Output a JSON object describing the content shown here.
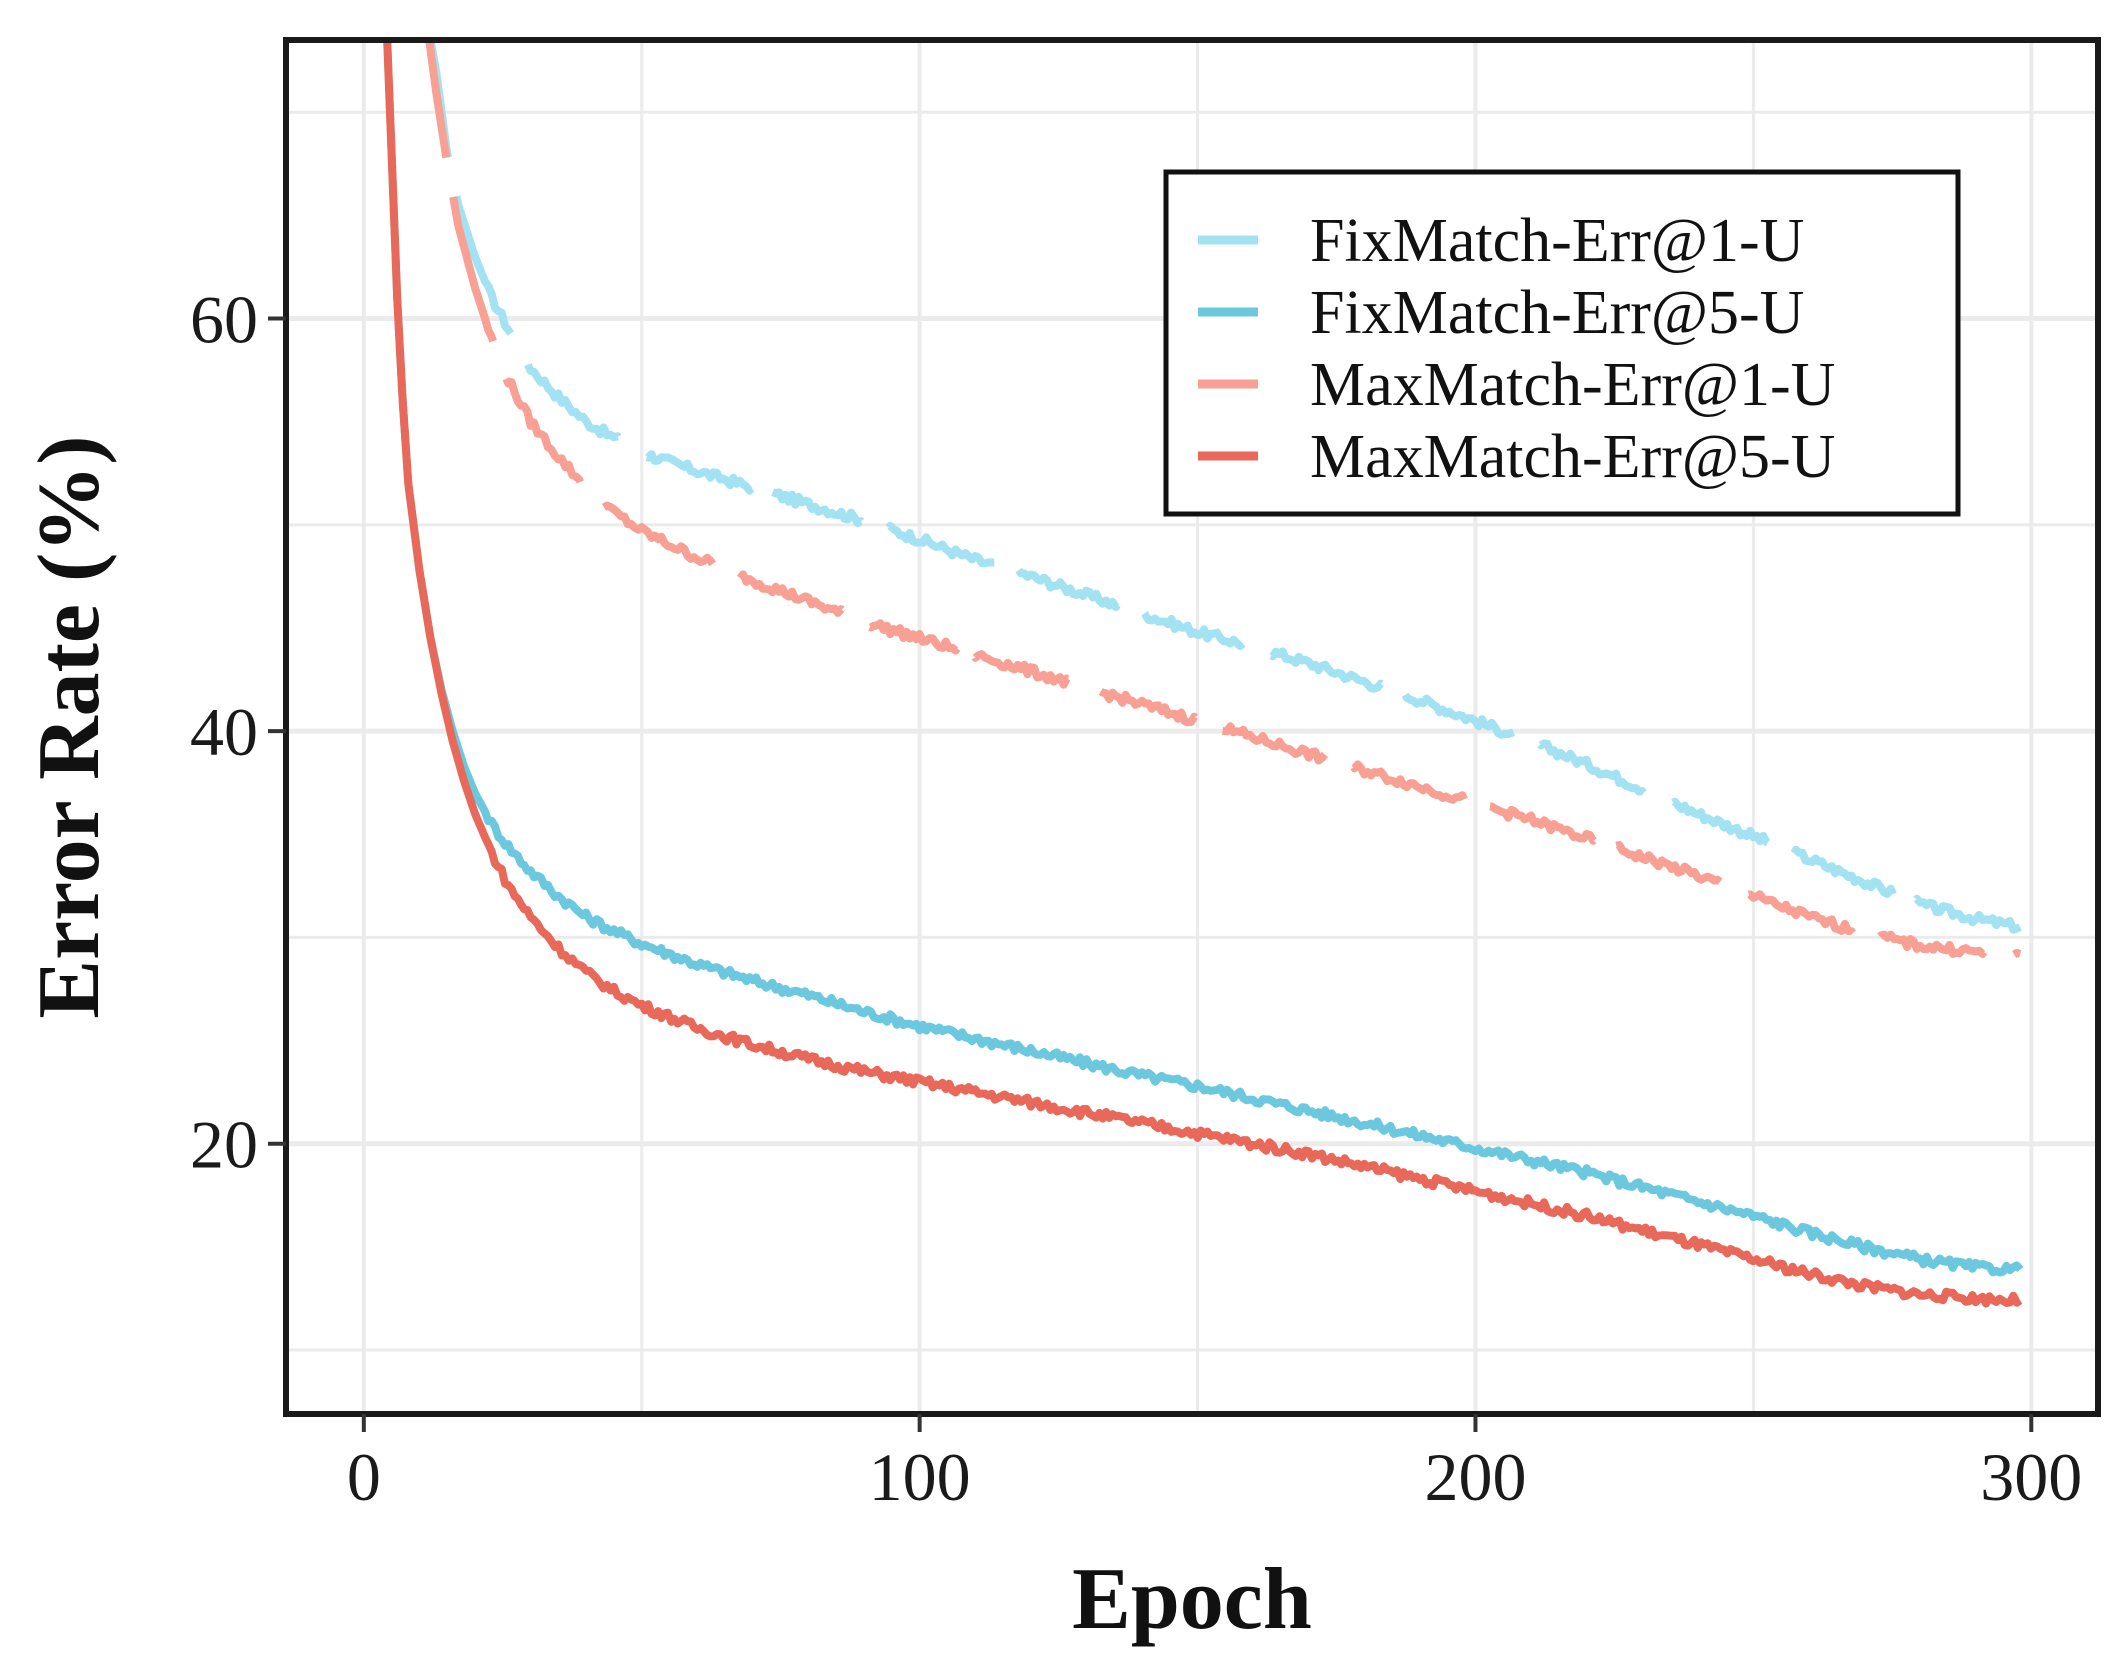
{
  "chart_data": {
    "type": "line",
    "title": "",
    "xlabel": "Epoch",
    "ylabel": "Error Rate (%)",
    "xlim": [
      -14,
      312
    ],
    "ylim": [
      6.9,
      73.5
    ],
    "x_ticks": [
      0,
      100,
      200,
      300
    ],
    "x_tick_labels": [
      "0",
      "100",
      "200",
      "300"
    ],
    "y_ticks": [
      20,
      40,
      60
    ],
    "y_tick_labels": [
      "20",
      "40",
      "60"
    ],
    "grid": true,
    "legend_position": "top-right",
    "series": [
      {
        "name": "FixMatch-Err@1-U",
        "color": "#a3e2f3",
        "dashed": true,
        "points": [
          [
            11,
            75
          ],
          [
            13,
            72
          ],
          [
            15,
            68
          ],
          [
            17,
            65.5
          ],
          [
            20,
            63
          ],
          [
            23,
            61
          ],
          [
            26,
            59.5
          ],
          [
            30,
            57.6
          ],
          [
            35,
            56.2
          ],
          [
            40,
            55
          ],
          [
            45,
            54.2
          ],
          [
            50,
            53.5
          ],
          [
            60,
            52.6
          ],
          [
            70,
            51.8
          ],
          [
            80,
            51
          ],
          [
            90,
            50.2
          ],
          [
            100,
            49.3
          ],
          [
            110,
            48.3
          ],
          [
            120,
            47.5
          ],
          [
            130,
            46.6
          ],
          [
            140,
            45.7
          ],
          [
            150,
            44.8
          ],
          [
            160,
            44.1
          ],
          [
            170,
            43.3
          ],
          [
            180,
            42.4
          ],
          [
            190,
            41.5
          ],
          [
            200,
            40.5
          ],
          [
            210,
            39.5
          ],
          [
            220,
            38.4
          ],
          [
            230,
            37.2
          ],
          [
            240,
            36
          ],
          [
            250,
            34.9
          ],
          [
            260,
            33.8
          ],
          [
            270,
            32.7
          ],
          [
            280,
            31.6
          ],
          [
            290,
            30.9
          ],
          [
            298,
            30.5
          ]
        ]
      },
      {
        "name": "FixMatch-Err@5-U",
        "color": "#6bc8de",
        "dashed": false,
        "points": [
          [
            4,
            75
          ],
          [
            5,
            68
          ],
          [
            6,
            61
          ],
          [
            7,
            56
          ],
          [
            8,
            52
          ],
          [
            10,
            47.8
          ],
          [
            12,
            44.5
          ],
          [
            14,
            42
          ],
          [
            16,
            40
          ],
          [
            18,
            38.3
          ],
          [
            20,
            37
          ],
          [
            23,
            35.5
          ],
          [
            26,
            34.4
          ],
          [
            30,
            33.2
          ],
          [
            35,
            32
          ],
          [
            40,
            31
          ],
          [
            45,
            30.3
          ],
          [
            50,
            29.7
          ],
          [
            60,
            28.7
          ],
          [
            70,
            27.9
          ],
          [
            80,
            27.2
          ],
          [
            90,
            26.4
          ],
          [
            100,
            25.7
          ],
          [
            110,
            25.1
          ],
          [
            120,
            24.5
          ],
          [
            130,
            23.9
          ],
          [
            140,
            23.3
          ],
          [
            150,
            22.8
          ],
          [
            160,
            22.2
          ],
          [
            170,
            21.6
          ],
          [
            180,
            21
          ],
          [
            190,
            20.4
          ],
          [
            200,
            19.8
          ],
          [
            210,
            19.2
          ],
          [
            220,
            18.6
          ],
          [
            230,
            17.9
          ],
          [
            240,
            17.2
          ],
          [
            250,
            16.5
          ],
          [
            260,
            15.7
          ],
          [
            270,
            15
          ],
          [
            280,
            14.4
          ],
          [
            290,
            14
          ],
          [
            298,
            13.9
          ]
        ]
      },
      {
        "name": "MaxMatch-Err@1-U",
        "color": "#f9a095",
        "dashed": true,
        "points": [
          [
            11,
            75
          ],
          [
            13,
            71
          ],
          [
            15,
            67.5
          ],
          [
            17,
            64.5
          ],
          [
            20,
            61.5
          ],
          [
            23,
            59
          ],
          [
            26,
            57
          ],
          [
            30,
            55
          ],
          [
            35,
            53.3
          ],
          [
            40,
            51.8
          ],
          [
            45,
            50.6
          ],
          [
            50,
            49.7
          ],
          [
            60,
            48.4
          ],
          [
            70,
            47.3
          ],
          [
            80,
            46.3
          ],
          [
            90,
            45.3
          ],
          [
            100,
            44.5
          ],
          [
            110,
            43.7
          ],
          [
            120,
            42.9
          ],
          [
            130,
            42.1
          ],
          [
            140,
            41.3
          ],
          [
            150,
            40.5
          ],
          [
            160,
            39.7
          ],
          [
            170,
            38.9
          ],
          [
            180,
            38.1
          ],
          [
            190,
            37.3
          ],
          [
            200,
            36.5
          ],
          [
            210,
            35.7
          ],
          [
            220,
            34.8
          ],
          [
            230,
            33.9
          ],
          [
            240,
            33
          ],
          [
            250,
            32
          ],
          [
            260,
            31
          ],
          [
            270,
            30.2
          ],
          [
            280,
            29.6
          ],
          [
            290,
            29.3
          ],
          [
            298,
            29.2
          ]
        ]
      },
      {
        "name": "MaxMatch-Err@5-U",
        "color": "#e8685a",
        "dashed": false,
        "points": [
          [
            4,
            75
          ],
          [
            5,
            68
          ],
          [
            6,
            61
          ],
          [
            7,
            56
          ],
          [
            8,
            52
          ],
          [
            10,
            47.8
          ],
          [
            12,
            44.5
          ],
          [
            14,
            41.8
          ],
          [
            16,
            39.5
          ],
          [
            18,
            37.6
          ],
          [
            20,
            36
          ],
          [
            23,
            34.1
          ],
          [
            26,
            32.5
          ],
          [
            30,
            31
          ],
          [
            35,
            29.5
          ],
          [
            40,
            28.3
          ],
          [
            45,
            27.4
          ],
          [
            50,
            26.7
          ],
          [
            60,
            25.6
          ],
          [
            70,
            24.8
          ],
          [
            80,
            24.1
          ],
          [
            90,
            23.5
          ],
          [
            100,
            23
          ],
          [
            110,
            22.5
          ],
          [
            120,
            22
          ],
          [
            130,
            21.5
          ],
          [
            140,
            21
          ],
          [
            150,
            20.5
          ],
          [
            160,
            20
          ],
          [
            170,
            19.5
          ],
          [
            180,
            18.9
          ],
          [
            190,
            18.3
          ],
          [
            200,
            17.7
          ],
          [
            210,
            17.1
          ],
          [
            220,
            16.5
          ],
          [
            230,
            15.8
          ],
          [
            240,
            15.1
          ],
          [
            250,
            14.4
          ],
          [
            260,
            13.7
          ],
          [
            270,
            13.1
          ],
          [
            280,
            12.7
          ],
          [
            290,
            12.5
          ],
          [
            298,
            12.4
          ]
        ]
      }
    ]
  }
}
